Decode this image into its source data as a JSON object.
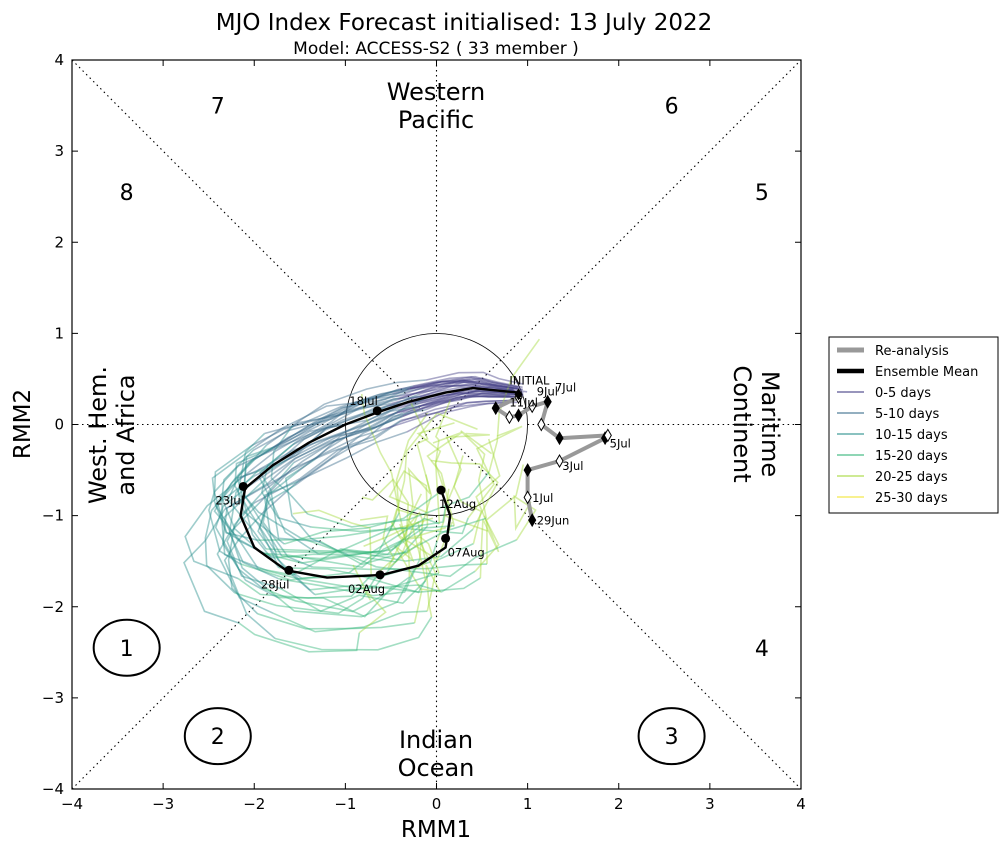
{
  "chart_data": {
    "type": "line",
    "title": "MJO Index Forecast initialised:  13  July 2022",
    "subtitle": "Model: ACCESS-S2 ( 33 member )",
    "xlabel": "RMM1",
    "ylabel": "RMM2",
    "xlim": [
      -4,
      4
    ],
    "ylim": [
      -4,
      4
    ],
    "xticks": [
      "−4",
      "−3",
      "−2",
      "−1",
      "0",
      "1",
      "2",
      "3",
      "4"
    ],
    "yticks": [
      "4",
      "3",
      "2",
      "1",
      "0",
      "−1",
      "−2",
      "−3",
      "−4"
    ],
    "grid": false,
    "legend_position": "outside-right",
    "phases": [
      {
        "label": "1",
        "x": -3.4,
        "y": -2.45,
        "circled": true
      },
      {
        "label": "2",
        "x": -2.4,
        "y": -3.42,
        "circled": true
      },
      {
        "label": "3",
        "x": 2.58,
        "y": -3.42,
        "circled": true
      },
      {
        "label": "4",
        "x": 3.57,
        "y": -2.45,
        "circled": false
      },
      {
        "label": "5",
        "x": 3.57,
        "y": 2.55,
        "circled": false
      },
      {
        "label": "6",
        "x": 2.58,
        "y": 3.5,
        "circled": false
      },
      {
        "label": "7",
        "x": -2.4,
        "y": 3.5,
        "circled": false
      },
      {
        "label": "8",
        "x": -3.4,
        "y": 2.55,
        "circled": false
      }
    ],
    "regions": {
      "western_pacific": [
        "Western",
        "Pacific"
      ],
      "indian_ocean": [
        "Indian",
        "Ocean"
      ],
      "west_hem": [
        "West. Hem.",
        "and Africa"
      ],
      "maritime": [
        "Maritime",
        "Continent"
      ]
    },
    "legend": [
      {
        "label": "Re-analysis",
        "color": "#999999"
      },
      {
        "label": "Ensemble Mean",
        "color": "#000000"
      },
      {
        "label": "0-5 days",
        "color": "#433e85"
      },
      {
        "label": "5-10 days",
        "color": "#3b6d8c"
      },
      {
        "label": "10-15 days",
        "color": "#2a908d"
      },
      {
        "label": "15-20 days",
        "color": "#33b579"
      },
      {
        "label": "20-25 days",
        "color": "#a5d93c"
      },
      {
        "label": "25-30 days",
        "color": "#f3e635"
      }
    ],
    "reanalysis": {
      "x": [
        1.05,
        1.0,
        1.0,
        1.35,
        1.85,
        1.88,
        1.35,
        1.15,
        1.22,
        1.05,
        0.9,
        0.8,
        0.65,
        0.9
      ],
      "y": [
        -1.05,
        -0.8,
        -0.5,
        -0.4,
        -0.15,
        -0.12,
        -0.15,
        0.0,
        0.25,
        0.2,
        0.1,
        0.08,
        0.18,
        0.3
      ],
      "labels": [
        {
          "text": "29Jun",
          "x": 1.1,
          "y": -1.1
        },
        {
          "text": "1Jul",
          "x": 1.05,
          "y": -0.85
        },
        {
          "text": "3Jul",
          "x": 1.38,
          "y": -0.5
        },
        {
          "text": "5Jul",
          "x": 1.9,
          "y": -0.25
        },
        {
          "text": "7Jul",
          "x": 1.3,
          "y": 0.36
        },
        {
          "text": "9Jul",
          "x": 1.1,
          "y": 0.32
        },
        {
          "text": "11Jul",
          "x": 0.8,
          "y": 0.2
        },
        {
          "text": "INITIAL",
          "x": 0.8,
          "y": 0.44
        }
      ]
    },
    "ensemble_mean": {
      "x": [
        0.9,
        0.6,
        0.4,
        0.1,
        -0.3,
        -0.6,
        -1.0,
        -1.4,
        -1.8,
        -2.1,
        -2.15,
        -2.0,
        -1.65,
        -1.2,
        -0.6,
        -0.2,
        0.1,
        0.15,
        0.05
      ],
      "y": [
        0.35,
        0.38,
        0.4,
        0.35,
        0.25,
        0.15,
        0.0,
        -0.2,
        -0.45,
        -0.7,
        -1.0,
        -1.35,
        -1.6,
        -1.68,
        -1.65,
        -1.55,
        -1.35,
        -1.0,
        -0.72
      ],
      "points": [
        {
          "x": 0.9,
          "y": 0.33,
          "label": "",
          "marker": "diamond"
        },
        {
          "x": -0.65,
          "y": 0.15,
          "label": "18Jul"
        },
        {
          "x": -2.12,
          "y": -0.68,
          "label": "23Jul"
        },
        {
          "x": -1.62,
          "y": -1.6,
          "label": "28Jul"
        },
        {
          "x": -0.62,
          "y": -1.65,
          "label": "02Aug"
        },
        {
          "x": 0.1,
          "y": -1.25,
          "label": "07Aug"
        },
        {
          "x": 0.05,
          "y": -0.72,
          "label": "12Aug"
        }
      ]
    },
    "ensemble_members": 33
  }
}
